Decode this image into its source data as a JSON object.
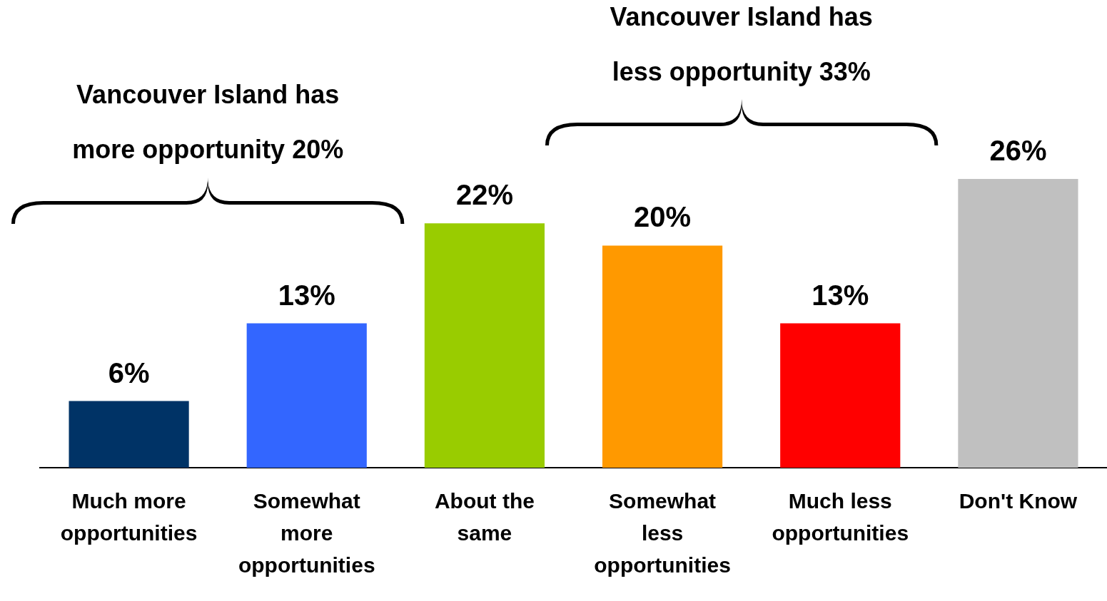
{
  "chart_data": {
    "type": "bar",
    "categories": [
      "Much more opportunities",
      "Somewhat more opportunities",
      "About the same",
      "Somewhat less opportunities",
      "Much less opportunities",
      "Don't Know"
    ],
    "values": [
      6,
      13,
      22,
      20,
      13,
      26
    ],
    "value_labels": [
      "6%",
      "13%",
      "22%",
      "20%",
      "13%",
      "26%"
    ],
    "colors": [
      "#003366",
      "#3366ff",
      "#99cc00",
      "#ff9900",
      "#ff0000",
      "#c0c0c0"
    ],
    "annotations": [
      "Vancouver Island has more opportunity 20%",
      "Vancouver Island has less opportunity 33%"
    ],
    "grid": false,
    "legend": false
  }
}
